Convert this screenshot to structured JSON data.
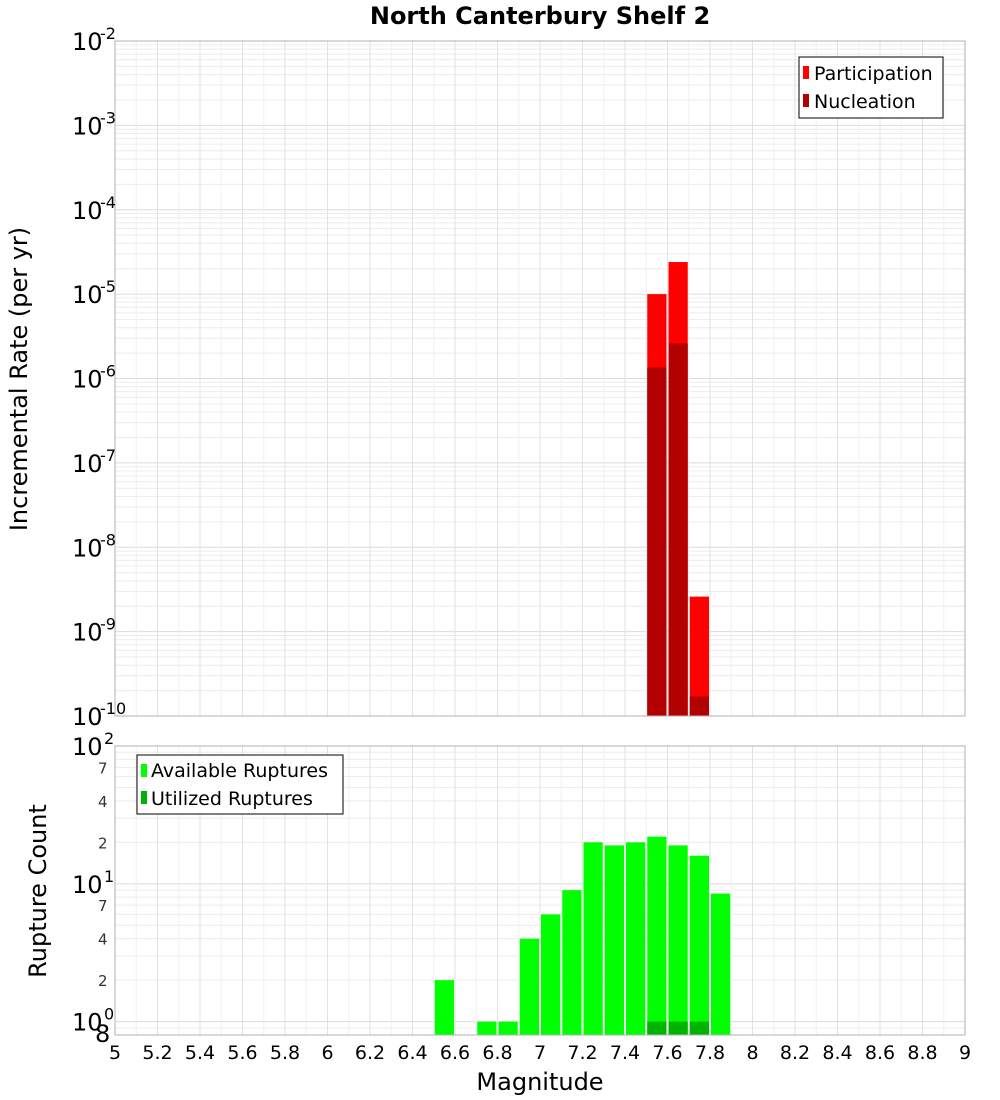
{
  "chart_data": [
    {
      "type": "bar",
      "title": "North Canterbury Shelf 2",
      "xlabel": "",
      "ylabel": "Incremental Rate (per yr)",
      "yscale": "log",
      "xlim": [
        5,
        9
      ],
      "ylim_exp": [
        -10,
        -2
      ],
      "ytick_exponents": [
        "-10",
        "-9",
        "-8",
        "-7",
        "-6",
        "-5",
        "-4",
        "-3",
        "-2"
      ],
      "bin_width": 0.1,
      "legend": {
        "position": "top-right",
        "entries": [
          {
            "name": "Participation",
            "color": "#ff0000"
          },
          {
            "name": "Nucleation",
            "color": "#b30000"
          }
        ]
      },
      "series": [
        {
          "name": "Participation",
          "color": "#ff0000",
          "x": [
            7.55,
            7.65,
            7.75
          ],
          "values": [
            1e-05,
            2.4e-05,
            2.6e-09
          ]
        },
        {
          "name": "Nucleation",
          "color": "#b30000",
          "x": [
            7.55,
            7.65,
            7.75
          ],
          "values": [
            1.35e-06,
            2.6e-06,
            1.7e-10
          ]
        }
      ]
    },
    {
      "type": "bar",
      "title": "",
      "xlabel": "Magnitude",
      "ylabel": "Rupture Count",
      "yscale": "log",
      "xlim": [
        5,
        9
      ],
      "ylim": [
        0.8,
        100
      ],
      "ytick_exponents": [
        "0",
        "1",
        "2"
      ],
      "minor_tick_labels": [
        "8",
        "2",
        "4",
        "7",
        "2",
        "4",
        "7"
      ],
      "minor_tick_values": [
        0.8,
        2,
        4,
        7,
        20,
        40,
        70
      ],
      "xticks": [
        "5",
        "5.2",
        "5.4",
        "5.6",
        "5.8",
        "6",
        "6.2",
        "6.4",
        "6.6",
        "6.8",
        "7",
        "7.2",
        "7.4",
        "7.6",
        "7.8",
        "8",
        "8.2",
        "8.4",
        "8.6",
        "8.8",
        "9"
      ],
      "bin_width": 0.1,
      "legend": {
        "position": "top-left",
        "entries": [
          {
            "name": "Available Ruptures",
            "color": "#00ff00"
          },
          {
            "name": "Utilized Ruptures",
            "color": "#00b300"
          }
        ]
      },
      "series": [
        {
          "name": "Available Ruptures",
          "color": "#00ff00",
          "x": [
            6.55,
            6.75,
            6.85,
            6.95,
            7.05,
            7.15,
            7.25,
            7.35,
            7.45,
            7.55,
            7.65,
            7.75,
            7.85
          ],
          "values": [
            2,
            1,
            1,
            4,
            6,
            9,
            20,
            19,
            20,
            22,
            19,
            16,
            8.5
          ]
        },
        {
          "name": "Utilized Ruptures",
          "color": "#00b300",
          "x": [
            7.55,
            7.65,
            7.75
          ],
          "values": [
            1,
            1,
            1
          ]
        }
      ]
    }
  ]
}
